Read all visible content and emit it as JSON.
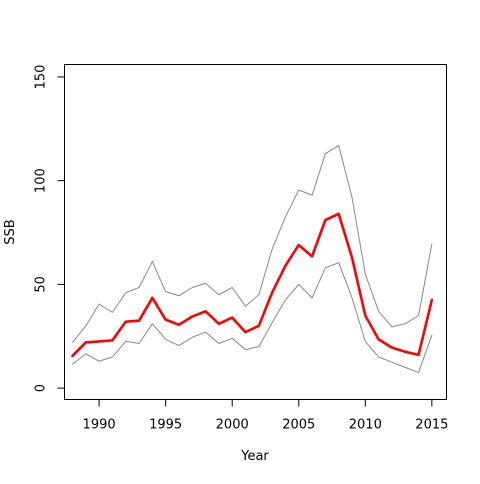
{
  "chart_data": {
    "type": "line",
    "title": "",
    "xlabel": "Year",
    "ylabel": "SSB",
    "xlim": [
      1987.4,
      2016.1
    ],
    "ylim": [
      -5.5,
      156
    ],
    "xticks": [
      1990,
      1995,
      2000,
      2005,
      2010,
      2015
    ],
    "yticks": [
      0,
      50,
      100,
      150
    ],
    "grid": false,
    "x": [
      1988,
      1989,
      1990,
      1991,
      1992,
      1993,
      1994,
      1995,
      1996,
      1997,
      1998,
      1999,
      2000,
      2001,
      2002,
      2003,
      2004,
      2005,
      2006,
      2007,
      2008,
      2009,
      2010,
      2011,
      2012,
      2013,
      2014,
      2015
    ],
    "series": [
      {
        "role": "upper",
        "color": "#888888",
        "width": 1,
        "values": [
          22,
          30,
          40.5,
          36.5,
          46,
          48.5,
          61,
          46.5,
          44.5,
          48.5,
          50.5,
          45,
          48.5,
          39.5,
          45,
          67,
          82.5,
          95.5,
          93,
          113,
          117,
          92,
          55,
          37,
          29.5,
          31,
          35,
          69.5
        ]
      },
      {
        "role": "estimate",
        "color": "#ff0000",
        "width": 2.6,
        "values": [
          15.5,
          22,
          22.5,
          23,
          32,
          32.5,
          43.5,
          33,
          30.5,
          34.5,
          37,
          31,
          34,
          27,
          30,
          46,
          59,
          69,
          63.5,
          81,
          84,
          63,
          35,
          23.5,
          19.5,
          17.5,
          16,
          42.5
        ]
      },
      {
        "role": "lower",
        "color": "#888888",
        "width": 1,
        "values": [
          11.5,
          16.5,
          13,
          15,
          22.5,
          21.5,
          31,
          23.5,
          20.5,
          24.5,
          27,
          21.5,
          24,
          18.5,
          20,
          31.5,
          42.5,
          50,
          43.5,
          58,
          60.5,
          43.5,
          22.5,
          15,
          12.5,
          10,
          7.5,
          25.5
        ]
      }
    ]
  }
}
